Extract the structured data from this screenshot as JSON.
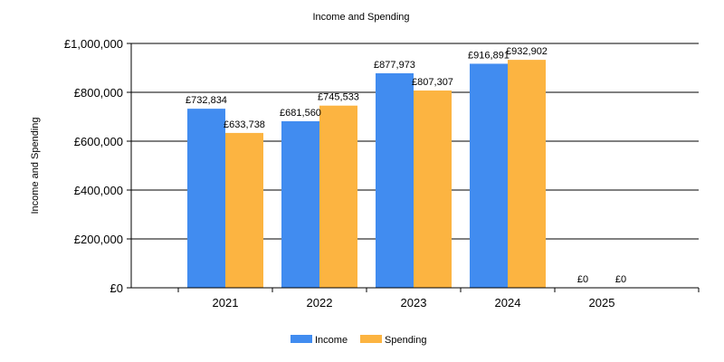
{
  "chart_data": {
    "type": "bar",
    "title": "Income and Spending",
    "xlabel": "",
    "ylabel": "Income and Spending",
    "categories": [
      "2021",
      "2022",
      "2023",
      "2024",
      "2025"
    ],
    "series": [
      {
        "name": "Income",
        "color": "#418cf0",
        "values": [
          732834,
          681560,
          877973,
          916891,
          0
        ],
        "labels": [
          "£732,834",
          "£681,560",
          "£877,973",
          "£916,891",
          "£0"
        ]
      },
      {
        "name": "Spending",
        "color": "#fcb441",
        "values": [
          633738,
          745533,
          807307,
          932902,
          0
        ],
        "labels": [
          "£633,738",
          "£745,533",
          "£807,307",
          "£932,902",
          "£0"
        ]
      }
    ],
    "ylim": [
      0,
      1000000
    ],
    "yticks": [
      {
        "value": 0,
        "label": "£0"
      },
      {
        "value": 200000,
        "label": "£200,000"
      },
      {
        "value": 400000,
        "label": "£400,000"
      },
      {
        "value": 600000,
        "label": "£600,000"
      },
      {
        "value": 800000,
        "label": "£800,000"
      },
      {
        "value": 1000000,
        "label": "£1,000,000"
      }
    ],
    "grid": true,
    "legend_position": "bottom-center"
  }
}
